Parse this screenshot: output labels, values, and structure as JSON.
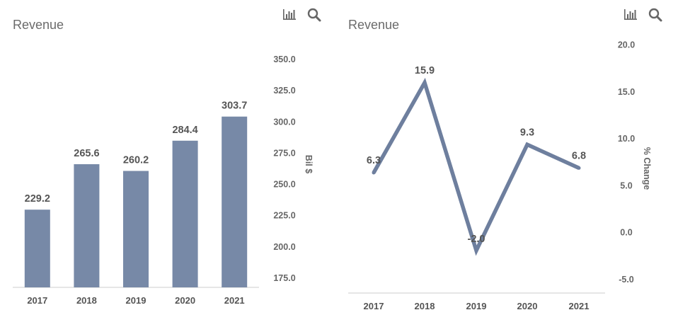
{
  "colors": {
    "bar": "#7789a7",
    "line": "#6e7f9e",
    "axis_text": "#666666",
    "label_text": "#555555",
    "axis_line": "#cccccc",
    "icon": "#666666"
  },
  "icons": {
    "chart_toggle": "bar-chart-icon",
    "search": "search-icon"
  },
  "chart_data": [
    {
      "type": "bar",
      "title": "Revenue",
      "categories": [
        "2017",
        "2018",
        "2019",
        "2020",
        "2021"
      ],
      "values": [
        229.2,
        265.6,
        260.2,
        284.4,
        303.7
      ],
      "value_labels": [
        "229.2",
        "265.6",
        "260.2",
        "284.4",
        "303.7"
      ],
      "ylabel": "Bil $",
      "yticks": [
        "175.0",
        "200.0",
        "225.0",
        "250.0",
        "275.0",
        "300.0",
        "325.0",
        "350.0"
      ],
      "ytick_values": [
        175,
        200,
        225,
        250,
        275,
        300,
        325,
        350
      ],
      "ylim": [
        167,
        350
      ],
      "y_axis_side": "right",
      "grid": false,
      "legend": "none"
    },
    {
      "type": "line",
      "title": "Revenue",
      "categories": [
        "2017",
        "2018",
        "2019",
        "2020",
        "2021"
      ],
      "values": [
        6.3,
        15.9,
        -2.0,
        9.3,
        6.8
      ],
      "value_labels": [
        "6.3",
        "15.9",
        "-2.0",
        "9.3",
        "6.8"
      ],
      "ylabel": "% Change",
      "yticks": [
        "-5.0",
        "0.0",
        "5.0",
        "10.0",
        "15.0",
        "20.0"
      ],
      "ytick_values": [
        -5,
        0,
        5,
        10,
        15,
        20
      ],
      "ylim": [
        -5,
        20
      ],
      "y_axis_side": "right",
      "grid": false,
      "legend": "none"
    }
  ]
}
